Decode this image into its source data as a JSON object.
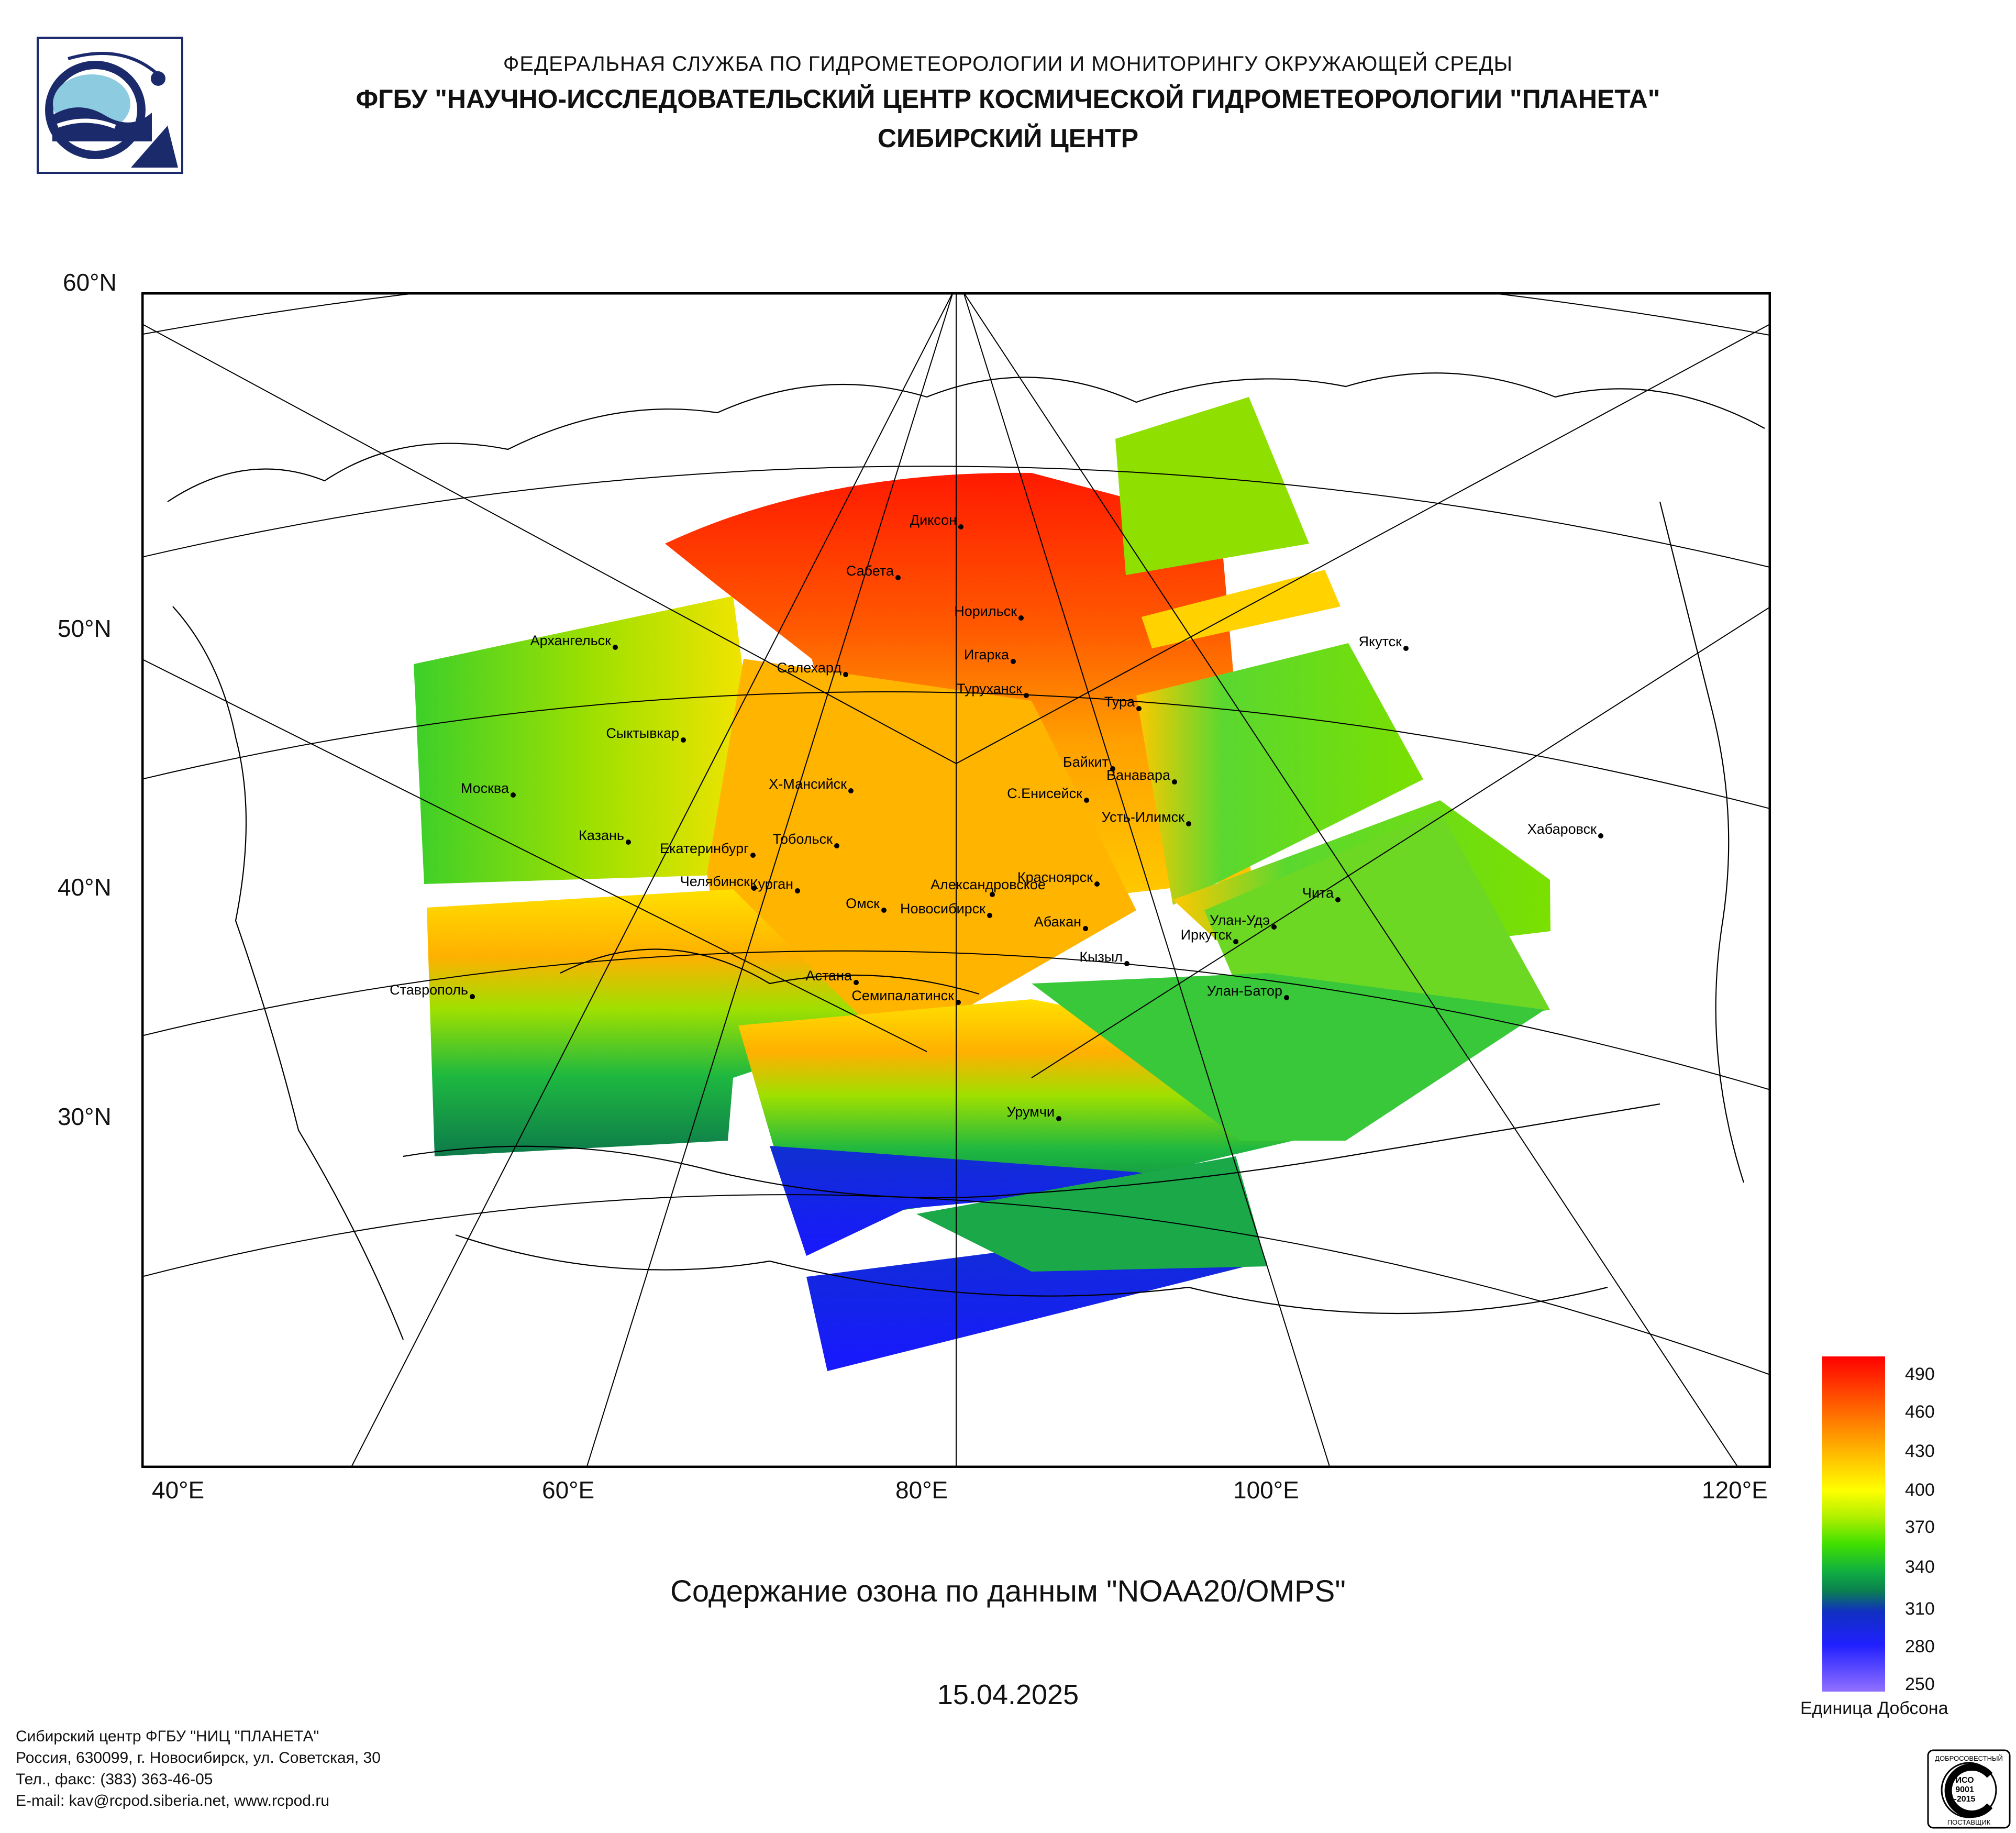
{
  "header": {
    "line1": "ФЕДЕРАЛЬНАЯ СЛУЖБА ПО ГИДРОМЕТЕОРОЛОГИИ И МОНИТОРИНГУ ОКРУЖАЮЩЕЙ СРЕДЫ",
    "line2": "ФГБУ \"НАУЧНО-ИССЛЕДОВАТЕЛЬСКИЙ ЦЕНТР КОСМИЧЕСКОЙ ГИДРОМЕТЕОРОЛОГИИ \"ПЛАНЕТА\"",
    "line3": "СИБИРСКИЙ ЦЕНТР"
  },
  "map": {
    "title": "Содержание озона по данным \"NOAA20/OMPS\"",
    "date": "15.04.2025",
    "lat_labels": [
      "60°N",
      "50°N",
      "40°N",
      "30°N"
    ],
    "lon_labels": [
      "40°E",
      "60°E",
      "80°E",
      "100°E",
      "120°E"
    ],
    "cities": [
      "Диксон",
      "Сабета",
      "Норильск",
      "Игарка",
      "Салехард",
      "Туруханск",
      "Тура",
      "Якутск",
      "Архангельск",
      "Сыктывкар",
      "Байкит",
      "Ванавара",
      "Москва",
      "Х-Мансийск",
      "С.Енисейск",
      "Усть-Илимск",
      "Казань",
      "Тобольск",
      "Екатеринбург",
      "Хабаровск",
      "Челябинск",
      "Курган",
      "Александровское",
      "Красноярск",
      "Омск",
      "Новосибирск",
      "Чита",
      "Абакан",
      "Улан-Удэ",
      "Иркутск",
      "Кызыл",
      "Астана",
      "Ставрополь",
      "Семипалатинск",
      "Улан-Батор",
      "Урумчи"
    ]
  },
  "legend": {
    "ticks": [
      "490",
      "460",
      "430",
      "400",
      "370",
      "340",
      "310",
      "280",
      "250"
    ],
    "unit": "Единица Добсона",
    "colors": [
      "#ff0000",
      "#ff7a00",
      "#ffc800",
      "#ffff00",
      "#7fe000",
      "#1ec83c",
      "#1040c0",
      "#2020ff",
      "#a070ff"
    ]
  },
  "footer": {
    "line1": "Сибирский центр ФГБУ \"НИЦ \"ПЛАНЕТА\"",
    "line2": "Россия, 630099, г. Новосибирск, ул. Советская, 30",
    "line3": "Тел., факс: (383) 363-46-05",
    "line4": "E-mail: kav@rcpod.siberia.net, www.rcpod.ru"
  },
  "cert": {
    "text1": "ДОБРОСОВЕСТНЫЙ",
    "text2": "ИСО",
    "text3": "9001",
    "text4": "-2015",
    "text5": "ПОСТАВЩИК"
  }
}
